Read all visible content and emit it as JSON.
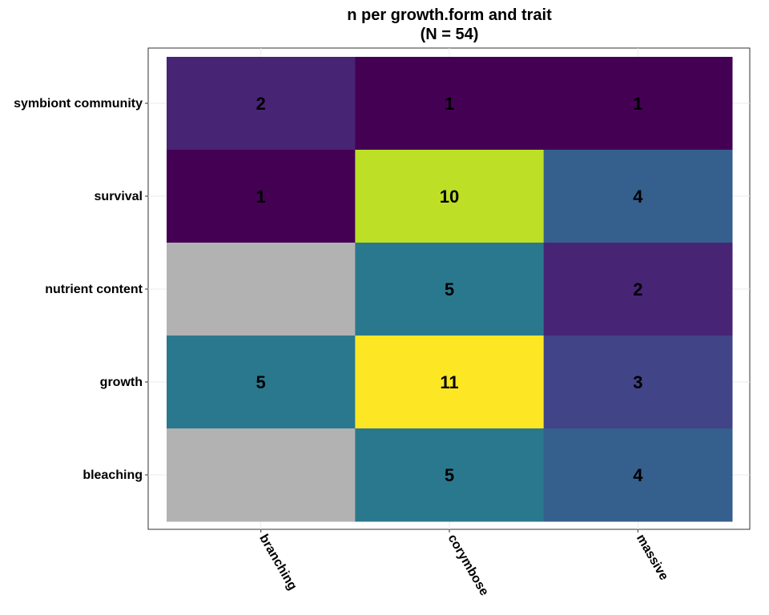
{
  "chart_data": {
    "type": "heatmap",
    "title": "n per growth.form and trait",
    "subtitle": "(N = 54)",
    "xlabel": "",
    "ylabel": "",
    "x_categories": [
      "branching",
      "corymbose",
      "massive"
    ],
    "y_categories": [
      "bleaching",
      "growth",
      "nutrient content",
      "survival",
      "symbiont community"
    ],
    "cells": [
      {
        "x": "branching",
        "y": "symbiont community",
        "value": 2
      },
      {
        "x": "corymbose",
        "y": "symbiont community",
        "value": 1
      },
      {
        "x": "massive",
        "y": "symbiont community",
        "value": 1
      },
      {
        "x": "branching",
        "y": "survival",
        "value": 1
      },
      {
        "x": "corymbose",
        "y": "survival",
        "value": 10
      },
      {
        "x": "massive",
        "y": "survival",
        "value": 4
      },
      {
        "x": "branching",
        "y": "nutrient content",
        "value": null
      },
      {
        "x": "corymbose",
        "y": "nutrient content",
        "value": 5
      },
      {
        "x": "massive",
        "y": "nutrient content",
        "value": 2
      },
      {
        "x": "branching",
        "y": "growth",
        "value": 5
      },
      {
        "x": "corymbose",
        "y": "growth",
        "value": 11
      },
      {
        "x": "massive",
        "y": "growth",
        "value": 3
      },
      {
        "x": "branching",
        "y": "bleaching",
        "value": null
      },
      {
        "x": "corymbose",
        "y": "bleaching",
        "value": 5
      },
      {
        "x": "massive",
        "y": "bleaching",
        "value": 4
      }
    ],
    "value_range": [
      1,
      11
    ],
    "colormap": "viridis",
    "na_color": "#b2b2b2",
    "grid": true,
    "legend": "none"
  }
}
